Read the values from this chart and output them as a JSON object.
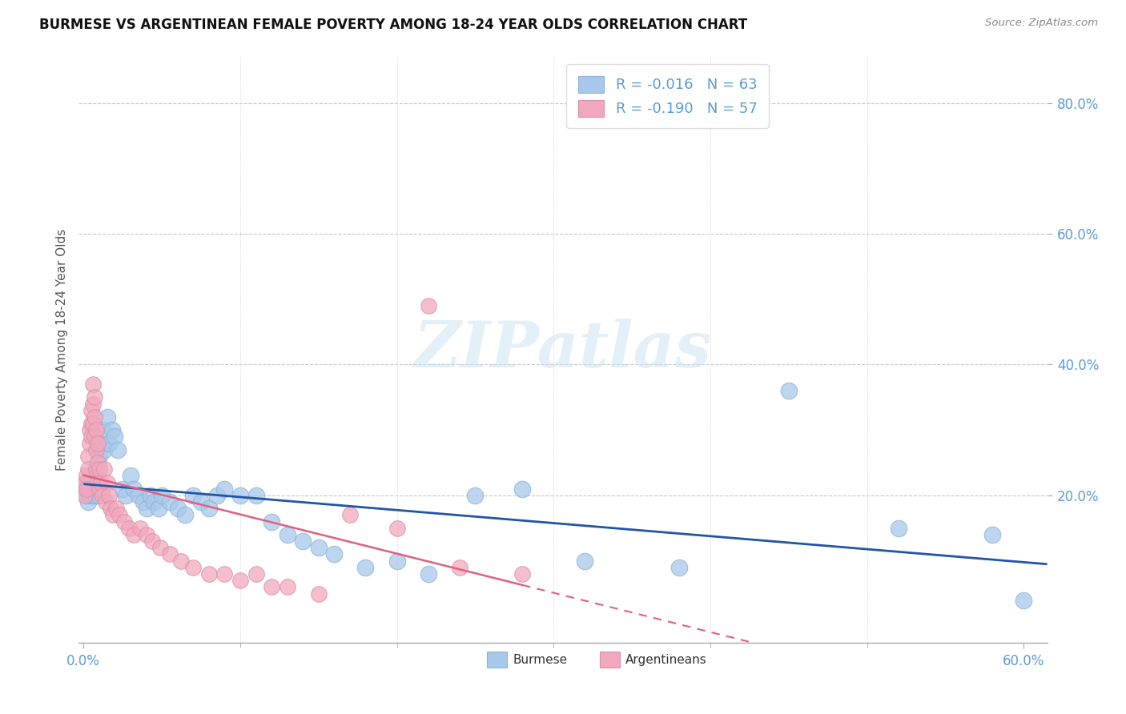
{
  "title": "BURMESE VS ARGENTINEAN FEMALE POVERTY AMONG 18-24 YEAR OLDS CORRELATION CHART",
  "source": "Source: ZipAtlas.com",
  "ylabel": "Female Poverty Among 18-24 Year Olds",
  "xlim": [
    -0.003,
    0.615
  ],
  "ylim": [
    -0.025,
    0.87
  ],
  "burmese_R": "-0.016",
  "burmese_N": "63",
  "arg_R": "-0.190",
  "arg_N": "57",
  "burmese_color": "#a8c8ea",
  "arg_color": "#f2a8bc",
  "burmese_line_color": "#2255aa",
  "arg_line_color": "#e06080",
  "legend_label_burmese": "Burmese",
  "legend_label_arg": "Argentineans",
  "burmese_x": [
    0.001,
    0.002,
    0.002,
    0.003,
    0.003,
    0.004,
    0.004,
    0.005,
    0.005,
    0.006,
    0.006,
    0.007,
    0.007,
    0.008,
    0.009,
    0.009,
    0.01,
    0.01,
    0.011,
    0.012,
    0.013,
    0.015,
    0.016,
    0.018,
    0.02,
    0.022,
    0.025,
    0.027,
    0.03,
    0.032,
    0.035,
    0.038,
    0.04,
    0.043,
    0.045,
    0.048,
    0.05,
    0.055,
    0.06,
    0.065,
    0.07,
    0.075,
    0.08,
    0.085,
    0.09,
    0.1,
    0.11,
    0.12,
    0.13,
    0.14,
    0.15,
    0.16,
    0.18,
    0.2,
    0.22,
    0.25,
    0.28,
    0.32,
    0.38,
    0.45,
    0.52,
    0.58,
    0.6
  ],
  "burmese_y": [
    0.21,
    0.22,
    0.2,
    0.21,
    0.19,
    0.22,
    0.2,
    0.23,
    0.21,
    0.22,
    0.2,
    0.23,
    0.21,
    0.2,
    0.22,
    0.21,
    0.26,
    0.2,
    0.28,
    0.3,
    0.27,
    0.32,
    0.28,
    0.3,
    0.29,
    0.27,
    0.21,
    0.2,
    0.23,
    0.21,
    0.2,
    0.19,
    0.18,
    0.2,
    0.19,
    0.18,
    0.2,
    0.19,
    0.18,
    0.17,
    0.2,
    0.19,
    0.18,
    0.2,
    0.21,
    0.2,
    0.2,
    0.16,
    0.14,
    0.13,
    0.12,
    0.11,
    0.09,
    0.1,
    0.08,
    0.2,
    0.21,
    0.1,
    0.09,
    0.36,
    0.15,
    0.14,
    0.04
  ],
  "arg_x": [
    0.001,
    0.001,
    0.002,
    0.002,
    0.003,
    0.003,
    0.004,
    0.004,
    0.005,
    0.005,
    0.005,
    0.006,
    0.006,
    0.006,
    0.007,
    0.007,
    0.007,
    0.008,
    0.008,
    0.008,
    0.009,
    0.009,
    0.009,
    0.01,
    0.01,
    0.011,
    0.012,
    0.013,
    0.014,
    0.015,
    0.016,
    0.017,
    0.019,
    0.021,
    0.023,
    0.026,
    0.029,
    0.032,
    0.036,
    0.04,
    0.044,
    0.049,
    0.055,
    0.062,
    0.07,
    0.08,
    0.09,
    0.1,
    0.11,
    0.12,
    0.13,
    0.15,
    0.17,
    0.2,
    0.24,
    0.28,
    0.22
  ],
  "arg_y": [
    0.22,
    0.2,
    0.23,
    0.21,
    0.26,
    0.24,
    0.3,
    0.28,
    0.33,
    0.31,
    0.29,
    0.37,
    0.34,
    0.31,
    0.35,
    0.32,
    0.29,
    0.3,
    0.27,
    0.24,
    0.28,
    0.25,
    0.22,
    0.24,
    0.21,
    0.22,
    0.2,
    0.24,
    0.19,
    0.22,
    0.2,
    0.18,
    0.17,
    0.18,
    0.17,
    0.16,
    0.15,
    0.14,
    0.15,
    0.14,
    0.13,
    0.12,
    0.11,
    0.1,
    0.09,
    0.08,
    0.08,
    0.07,
    0.08,
    0.06,
    0.06,
    0.05,
    0.17,
    0.15,
    0.09,
    0.08,
    0.49
  ]
}
